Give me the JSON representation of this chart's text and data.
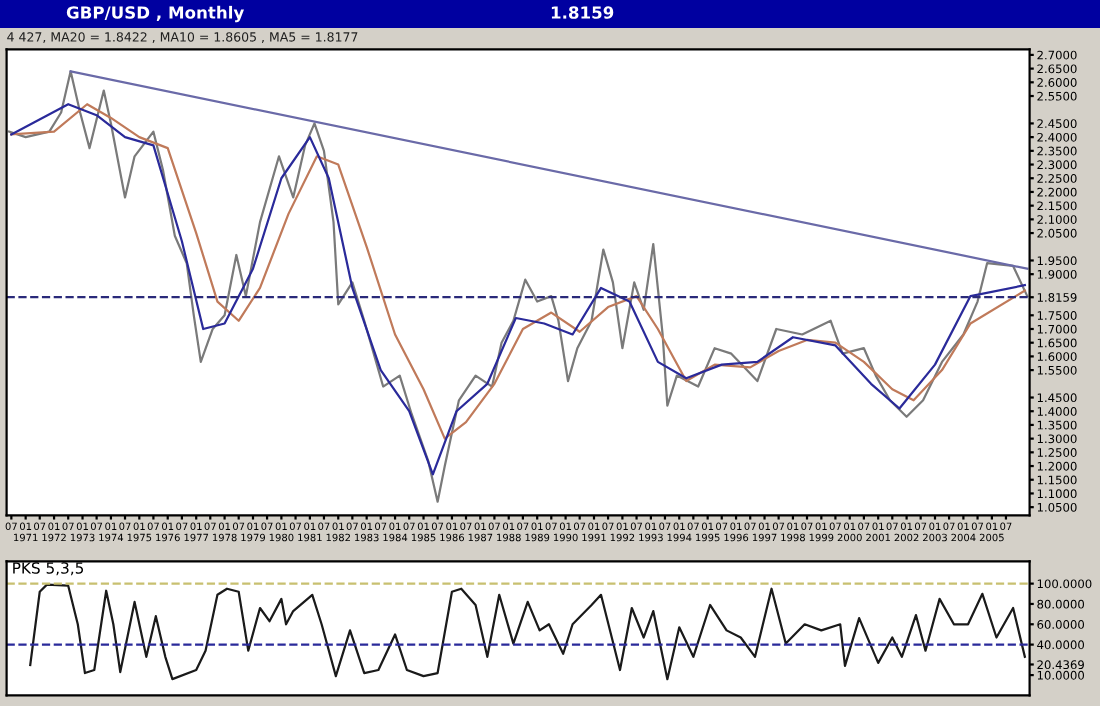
{
  "chart_data": [
    {
      "type": "line",
      "title": "GBP/USD , Monthly",
      "annotations": [
        "1.8159",
        "4 427, MA20 = 1.8422 , MA10 = 1.8605 , MA5 = 1.8177"
      ],
      "series": [
        {
          "color": "#7a7a7a",
          "x": [
            "1970-06",
            "1971-01",
            "1971-11",
            "1972-04",
            "1972-08",
            "1972-12",
            "1973-04",
            "1973-10",
            "1974-01",
            "1974-07",
            "1974-11",
            "1975-07",
            "1975-11",
            "1976-04",
            "1976-09",
            "1976-12",
            "1977-03",
            "1977-08",
            "1978-01",
            "1978-06",
            "1978-10",
            "1979-04",
            "1979-12",
            "1980-06",
            "1980-11",
            "1981-03",
            "1981-07",
            "1981-11",
            "1982-01",
            "1982-07",
            "1982-12",
            "1983-08",
            "1984-03",
            "1984-08",
            "1985-03",
            "1985-07",
            "1985-10",
            "1986-04",
            "1986-11",
            "1987-06",
            "1987-10",
            "1988-03",
            "1988-08",
            "1989-01",
            "1989-07",
            "1989-10",
            "1990-02",
            "1990-06",
            "1990-12",
            "1991-05",
            "1991-09",
            "1992-01",
            "1992-06",
            "1992-10",
            "1993-02",
            "1993-06",
            "1993-08",
            "1993-12",
            "1994-09",
            "1995-04",
            "1995-11",
            "1996-10",
            "1997-06",
            "1998-05",
            "1999-05",
            "1999-10",
            "2000-07",
            "2000-12",
            "2001-06",
            "2002-01",
            "2002-08",
            "2003-04",
            "2004-01",
            "2004-07",
            "2004-11",
            "2005-10",
            "2006-04"
          ],
          "values": [
            2.42,
            2.4,
            2.42,
            2.49,
            2.64,
            2.49,
            2.36,
            2.57,
            2.45,
            2.18,
            2.33,
            2.42,
            2.28,
            2.04,
            1.94,
            1.75,
            1.58,
            1.7,
            1.75,
            1.97,
            1.82,
            2.09,
            2.33,
            2.18,
            2.37,
            2.45,
            2.35,
            2.09,
            1.79,
            1.87,
            1.73,
            1.49,
            1.53,
            1.39,
            1.22,
            1.07,
            1.2,
            1.44,
            1.53,
            1.49,
            1.65,
            1.73,
            1.88,
            1.8,
            1.82,
            1.73,
            1.51,
            1.63,
            1.73,
            1.99,
            1.87,
            1.63,
            1.87,
            1.77,
            2.01,
            1.68,
            1.42,
            1.53,
            1.49,
            1.63,
            1.61,
            1.51,
            1.7,
            1.68,
            1.73,
            1.61,
            1.63,
            1.53,
            1.44,
            1.38,
            1.44,
            1.58,
            1.68,
            1.8,
            1.94,
            1.93,
            1.82
          ]
        },
        {
          "color": "#c07a5a",
          "x": [
            "1970-07",
            "1972-01",
            "1973-03",
            "1974-01",
            "1975-01",
            "1976-01",
            "1977-01",
            "1977-10",
            "1978-07",
            "1979-04",
            "1980-04",
            "1981-04",
            "1982-01",
            "1983-01",
            "1984-01",
            "1985-01",
            "1985-10",
            "1986-07",
            "1987-07",
            "1988-07",
            "1989-07",
            "1990-07",
            "1991-07",
            "1992-07",
            "1993-04",
            "1994-04",
            "1995-04",
            "1996-07",
            "1997-07",
            "1998-07",
            "1999-07",
            "2000-07",
            "2001-07",
            "2002-04",
            "2003-04",
            "2004-04",
            "2006-03"
          ],
          "values": [
            2.41,
            2.42,
            2.52,
            2.47,
            2.4,
            2.36,
            2.05,
            1.8,
            1.73,
            1.85,
            2.12,
            2.33,
            2.3,
            2.0,
            1.68,
            1.48,
            1.3,
            1.36,
            1.5,
            1.7,
            1.76,
            1.69,
            1.78,
            1.82,
            1.7,
            1.51,
            1.57,
            1.56,
            1.62,
            1.66,
            1.65,
            1.58,
            1.48,
            1.44,
            1.55,
            1.72,
            1.84
          ]
        },
        {
          "color": "#2a2a9a",
          "x": [
            "1970-07",
            "1972-07",
            "1973-07",
            "1974-07",
            "1975-07",
            "1976-07",
            "1977-04",
            "1978-01",
            "1979-01",
            "1980-01",
            "1981-01",
            "1981-09",
            "1982-07",
            "1983-07",
            "1984-07",
            "1985-05",
            "1986-03",
            "1987-04",
            "1988-04",
            "1989-04",
            "1990-04",
            "1991-04",
            "1992-04",
            "1993-04",
            "1994-04",
            "1995-07",
            "1996-10",
            "1998-01",
            "1999-07",
            "2000-10",
            "2001-10",
            "2003-01",
            "2004-04",
            "2006-03"
          ],
          "values": [
            2.41,
            2.52,
            2.48,
            2.4,
            2.37,
            2.02,
            1.7,
            1.72,
            1.92,
            2.25,
            2.4,
            2.25,
            1.85,
            1.55,
            1.4,
            1.17,
            1.4,
            1.5,
            1.74,
            1.72,
            1.68,
            1.85,
            1.8,
            1.58,
            1.52,
            1.57,
            1.58,
            1.67,
            1.64,
            1.5,
            1.41,
            1.57,
            1.82,
            1.86
          ]
        },
        {
          "color": "#6a6aa8",
          "x": [
            "1972-08",
            "2006-04"
          ],
          "values": [
            2.64,
            1.92
          ]
        }
      ],
      "ref_lines": [
        {
          "axis": "y",
          "value": 1.8159,
          "color": "#2a2a7a",
          "line_style": "dashed"
        }
      ],
      "xlim": [
        "1970-05",
        "2006-05"
      ],
      "ylim": [
        1.02,
        2.72
      ],
      "xticks": [
        {
          "value": "1970-07",
          "label": "07"
        },
        {
          "value": "1971-01",
          "label": "01\n1971"
        },
        {
          "value": "1971-07",
          "label": "07"
        },
        {
          "value": "1972-01",
          "label": "01\n1972"
        },
        {
          "value": "1972-07",
          "label": "07"
        },
        {
          "value": "1973-01",
          "label": "01\n1973"
        },
        {
          "value": "1973-07",
          "label": "07"
        },
        {
          "value": "1974-01",
          "label": "01\n1974"
        },
        {
          "value": "1974-07",
          "label": "07"
        },
        {
          "value": "1975-01",
          "label": "01\n1975"
        },
        {
          "value": "1975-07",
          "label": "07"
        },
        {
          "value": "1976-01",
          "label": "01\n1976"
        },
        {
          "value": "1976-07",
          "label": "07"
        },
        {
          "value": "1977-01",
          "label": "01\n1977"
        },
        {
          "value": "1977-07",
          "label": "07"
        },
        {
          "value": "1978-01",
          "label": "01\n1978"
        },
        {
          "value": "1978-07",
          "label": "07"
        },
        {
          "value": "1979-01",
          "label": "01\n1979"
        },
        {
          "value": "1979-07",
          "label": "07"
        },
        {
          "value": "1980-01",
          "label": "01\n1980"
        },
        {
          "value": "1980-07",
          "label": "07"
        },
        {
          "value": "1981-01",
          "label": "01\n1981"
        },
        {
          "value": "1981-07",
          "label": "07"
        },
        {
          "value": "1982-01",
          "label": "01\n1982"
        },
        {
          "value": "1982-07",
          "label": "07"
        },
        {
          "value": "1983-01",
          "label": "01\n1983"
        },
        {
          "value": "1983-07",
          "label": "07"
        },
        {
          "value": "1984-01",
          "label": "01\n1984"
        },
        {
          "value": "1984-07",
          "label": "07"
        },
        {
          "value": "1985-01",
          "label": "01\n1985"
        },
        {
          "value": "1985-07",
          "label": "07"
        },
        {
          "value": "1986-01",
          "label": "01\n1986"
        },
        {
          "value": "1986-07",
          "label": "07"
        },
        {
          "value": "1987-01",
          "label": "01\n1987"
        },
        {
          "value": "1987-07",
          "label": "07"
        },
        {
          "value": "1988-01",
          "label": "01\n1988"
        },
        {
          "value": "1988-07",
          "label": "07"
        },
        {
          "value": "1989-01",
          "label": "01\n1989"
        },
        {
          "value": "1989-07",
          "label": "07"
        },
        {
          "value": "1990-01",
          "label": "01\n1990"
        },
        {
          "value": "1990-07",
          "label": "07"
        },
        {
          "value": "1991-01",
          "label": "01\n1991"
        },
        {
          "value": "1991-07",
          "label": "07"
        },
        {
          "value": "1992-01",
          "label": "01\n1992"
        },
        {
          "value": "1992-07",
          "label": "07"
        },
        {
          "value": "1993-01",
          "label": "01\n1993"
        },
        {
          "value": "1993-07",
          "label": "07"
        },
        {
          "value": "1994-01",
          "label": "01\n1994"
        },
        {
          "value": "1994-07",
          "label": "07"
        },
        {
          "value": "1995-01",
          "label": "01\n1995"
        },
        {
          "value": "1995-07",
          "label": "07"
        },
        {
          "value": "1996-01",
          "label": "01\n1996"
        },
        {
          "value": "1996-07",
          "label": "07"
        },
        {
          "value": "1997-01",
          "label": "01\n1997"
        },
        {
          "value": "1997-07",
          "label": "07"
        },
        {
          "value": "1998-01",
          "label": "01\n1998"
        },
        {
          "value": "1998-07",
          "label": "07"
        },
        {
          "value": "1999-01",
          "label": "01\n1999"
        },
        {
          "value": "1999-07",
          "label": "07"
        },
        {
          "value": "2000-01",
          "label": "01\n2000"
        },
        {
          "value": "2000-07",
          "label": "07"
        },
        {
          "value": "2001-01",
          "label": "01\n2001"
        },
        {
          "value": "2001-07",
          "label": "07"
        },
        {
          "value": "2002-01",
          "label": "01\n2002"
        },
        {
          "value": "2002-07",
          "label": "07"
        },
        {
          "value": "2003-01",
          "label": "01\n2003"
        },
        {
          "value": "2003-07",
          "label": "07"
        },
        {
          "value": "2004-01",
          "label": "01\n2004"
        },
        {
          "value": "2004-07",
          "label": "07"
        },
        {
          "value": "2005-01",
          "label": "01\n2005"
        },
        {
          "value": "2005-07",
          "label": "07"
        }
      ],
      "yticks": [
        {
          "value": 2.7,
          "label": "2.7000"
        },
        {
          "value": 2.65,
          "label": "2.6500"
        },
        {
          "value": 2.6,
          "label": "2.6000"
        },
        {
          "value": 2.55,
          "label": "2.5500"
        },
        {
          "value": 2.45,
          "label": "2.4500"
        },
        {
          "value": 2.4,
          "label": "2.4000"
        },
        {
          "value": 2.35,
          "label": "2.3500"
        },
        {
          "value": 2.3,
          "label": "2.3000"
        },
        {
          "value": 2.25,
          "label": "2.2500"
        },
        {
          "value": 2.2,
          "label": "2.2000"
        },
        {
          "value": 2.15,
          "label": "2.1500"
        },
        {
          "value": 2.1,
          "label": "2.1000"
        },
        {
          "value": 2.05,
          "label": "2.0500"
        },
        {
          "value": 1.95,
          "label": "1.9500"
        },
        {
          "value": 1.9,
          "label": "1.9000"
        },
        {
          "value": 1.8159,
          "label": "1.8159"
        },
        {
          "value": 1.75,
          "label": "1.7500"
        },
        {
          "value": 1.7,
          "label": "1.7000"
        },
        {
          "value": 1.65,
          "label": "1.6500"
        },
        {
          "value": 1.6,
          "label": "1.6000"
        },
        {
          "value": 1.55,
          "label": "1.5500"
        },
        {
          "value": 1.45,
          "label": "1.4500"
        },
        {
          "value": 1.4,
          "label": "1.4000"
        },
        {
          "value": 1.35,
          "label": "1.3500"
        },
        {
          "value": 1.3,
          "label": "1.3000"
        },
        {
          "value": 1.25,
          "label": "1.2500"
        },
        {
          "value": 1.2,
          "label": "1.2000"
        },
        {
          "value": 1.15,
          "label": "1.1500"
        },
        {
          "value": 1.1,
          "label": "1.1000"
        },
        {
          "value": 1.05,
          "label": "1.0500"
        }
      ],
      "grid": false,
      "legend": false
    },
    {
      "type": "line",
      "title": "PKS 5,3,5",
      "series": [
        {
          "color": "#1a1a1a",
          "x": [
            "1971-03",
            "1971-07",
            "1971-10",
            "1972-07",
            "1972-11",
            "1973-02",
            "1973-06",
            "1973-11",
            "1974-02",
            "1974-05",
            "1974-11",
            "1975-04",
            "1975-08",
            "1975-12",
            "1976-03",
            "1977-01",
            "1977-05",
            "1977-10",
            "1978-02",
            "1978-07",
            "1978-11",
            "1979-04",
            "1979-08",
            "1980-01",
            "1980-03",
            "1980-06",
            "1981-02",
            "1981-06",
            "1981-12",
            "1982-06",
            "1982-12",
            "1983-06",
            "1984-01",
            "1984-06",
            "1985-01",
            "1985-07",
            "1986-01",
            "1986-05",
            "1986-11",
            "1987-04",
            "1987-09",
            "1988-03",
            "1988-09",
            "1989-02",
            "1989-06",
            "1989-12",
            "1990-04",
            "1990-12",
            "1991-04",
            "1991-12",
            "1992-05",
            "1992-10",
            "1993-02",
            "1993-08",
            "1994-01",
            "1994-07",
            "1995-02",
            "1995-09",
            "1996-03",
            "1996-09",
            "1997-04",
            "1997-10",
            "1998-06",
            "1999-01",
            "1999-09",
            "1999-11",
            "2000-05",
            "2001-01",
            "2001-07",
            "2001-11",
            "2002-05",
            "2002-09",
            "2003-03",
            "2003-09",
            "2004-03",
            "2004-09",
            "2005-03",
            "2005-10",
            "2006-03"
          ],
          "values": [
            20,
            92,
            99,
            98,
            60,
            12,
            15,
            93,
            60,
            13,
            82,
            28,
            68,
            28,
            6,
            15,
            34,
            89,
            95,
            92,
            34,
            76,
            63,
            85,
            60,
            73,
            89,
            60,
            9,
            54,
            12,
            15,
            50,
            15,
            9,
            12,
            92,
            95,
            79,
            28,
            89,
            41,
            82,
            54,
            60,
            31,
            60,
            79,
            89,
            15,
            76,
            47,
            73,
            6,
            57,
            28,
            79,
            54,
            47,
            28,
            95,
            41,
            60,
            54,
            60,
            19,
            66,
            22,
            47,
            28,
            69,
            34,
            85,
            60,
            60,
            90,
            47,
            76,
            28
          ]
        }
      ],
      "ref_lines": [
        {
          "axis": "y",
          "value": 100,
          "color": "#c8c070",
          "line_style": "dashed"
        },
        {
          "axis": "y",
          "value": 40,
          "color": "#2a2a9a",
          "line_style": "dashed"
        }
      ],
      "xlim": [
        "1970-05",
        "2006-05"
      ],
      "ylim": [
        -10,
        122
      ],
      "yticks": [
        {
          "value": 100,
          "label": "100.0000"
        },
        {
          "value": 80,
          "label": "80.0000"
        },
        {
          "value": 60,
          "label": "60.0000"
        },
        {
          "value": 40,
          "label": "40.0000"
        },
        {
          "value": 20.4369,
          "label": "20.4369"
        },
        {
          "value": 10,
          "label": "10.0000"
        }
      ],
      "tick_labels": "y",
      "grid": false,
      "legend": false
    }
  ]
}
